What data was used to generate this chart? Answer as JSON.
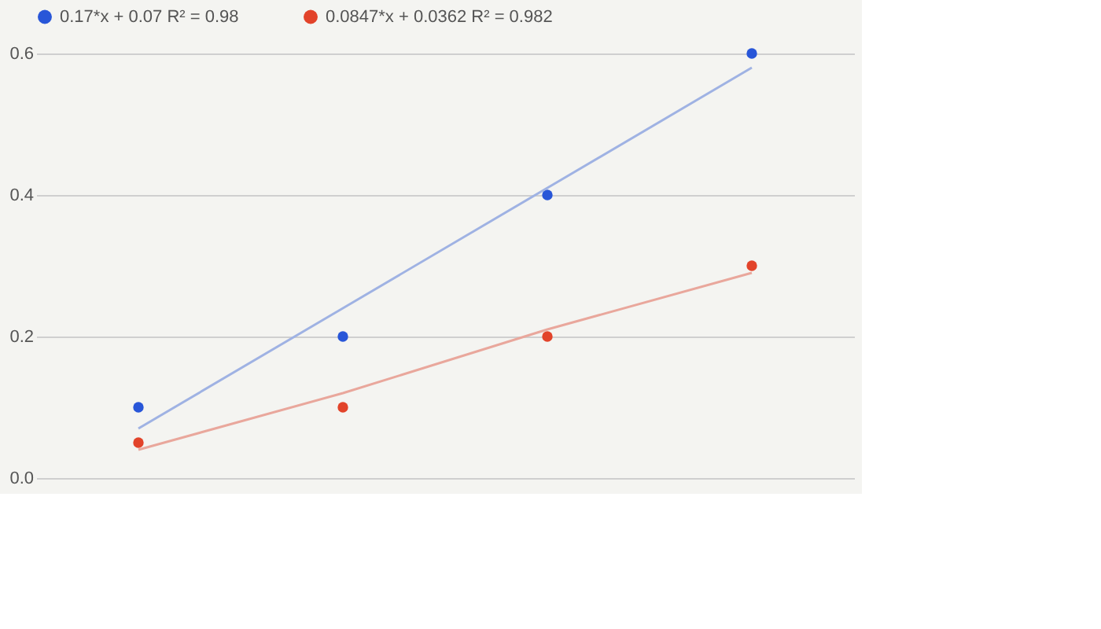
{
  "chart_data": {
    "type": "scatter",
    "categories": [
      null,
      null,
      null,
      null
    ],
    "ylim": [
      0,
      0.6
    ],
    "yticks": [
      {
        "value": 0,
        "label": "0.0"
      },
      {
        "value": 0.2,
        "label": "0.2"
      },
      {
        "value": 0.4,
        "label": "0.4"
      },
      {
        "value": 0.6,
        "label": "0.6"
      }
    ],
    "grid": "y",
    "tick_labels": "y",
    "legend": "top",
    "marker": "circle",
    "series": [
      {
        "name": "0.17*x + 0.07 R² = 0.98",
        "color": "#2856d8",
        "values": [
          0.1,
          0.2,
          0.4,
          0.6
        ]
      },
      {
        "name": "0.0847*x + 0.0362 R² = 0.982",
        "color": "#e2432a",
        "values": [
          0.05,
          0.1,
          0.2,
          0.3
        ]
      },
      {
        "type": "line",
        "marker": "none",
        "line_style": "solid",
        "color": "#9fb2e3",
        "values": [
          0.07,
          0.24,
          0.41,
          0.58
        ]
      },
      {
        "type": "line",
        "marker": "none",
        "line_style": "solid",
        "color": "#e9a79c",
        "values": [
          0.04,
          0.12,
          0.21,
          0.29
        ]
      }
    ]
  }
}
